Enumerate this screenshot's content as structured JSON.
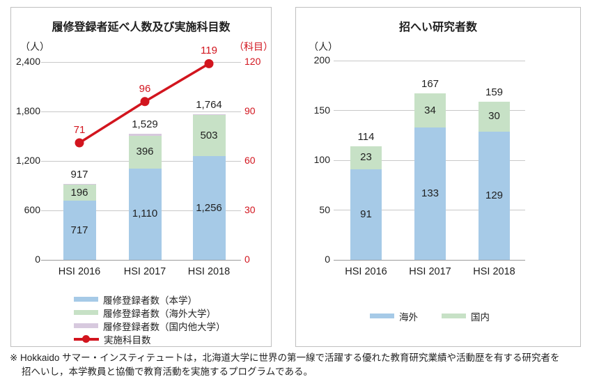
{
  "colors": {
    "blue": "#a6cae7",
    "green": "#c7e1c6",
    "purple": "#d7c9de",
    "red": "#d2151e",
    "grid": "#c8c8c8",
    "axis": "#9c9c9c",
    "border": "#bfbfbf",
    "text": "#1f1f1f"
  },
  "chart_data": [
    {
      "type": "bar",
      "title": "履修登録者延べ人数及び実施科目数",
      "categories": [
        "HSI 2016",
        "HSI 2017",
        "HSI 2018"
      ],
      "series": [
        {
          "name": "履修登録者数（本学）",
          "color": "#a6cae7",
          "values": [
            717,
            1110,
            1256
          ],
          "labels": [
            "717",
            "1,110",
            "1,256"
          ]
        },
        {
          "name": "履修登録者数（海外大学）",
          "color": "#c7e1c6",
          "values": [
            196,
            396,
            503
          ],
          "labels": [
            "196",
            "396",
            "503"
          ]
        },
        {
          "name": "履修登録者数（国内他大学）",
          "color": "#d7c9de",
          "values": [
            4,
            23,
            5
          ],
          "labels": [
            "",
            "",
            ""
          ]
        }
      ],
      "totals": [
        917,
        1529,
        1764
      ],
      "totals_display": [
        "917",
        "1,529",
        "1,764"
      ],
      "line_series": {
        "name": "実施科目数",
        "color": "#d2151e",
        "values": [
          71,
          96,
          119
        ],
        "labels": [
          "71",
          "96",
          "119"
        ]
      },
      "y_left": {
        "unit": "（人）",
        "max": 2400,
        "ticks": [
          "2,400",
          "1,800",
          "1,200",
          "600",
          "0"
        ]
      },
      "y_right": {
        "unit": "（科目）",
        "max": 120,
        "ticks": [
          "120",
          "90",
          "60",
          "30",
          "0"
        ]
      },
      "grid": "on",
      "legend_position": "bottom"
    },
    {
      "type": "bar",
      "title": "招へい研究者数",
      "categories": [
        "HSI 2016",
        "HSI 2017",
        "HSI 2018"
      ],
      "series": [
        {
          "name": "海外",
          "color": "#a6cae7",
          "values": [
            91,
            133,
            129
          ],
          "labels": [
            "91",
            "133",
            "129"
          ]
        },
        {
          "name": "国内",
          "color": "#c7e1c6",
          "values": [
            23,
            34,
            30
          ],
          "labels": [
            "23",
            "34",
            "30"
          ]
        }
      ],
      "totals": [
        114,
        167,
        159
      ],
      "totals_display": [
        "114",
        "167",
        "159"
      ],
      "y_left": {
        "unit": "（人）",
        "max": 200,
        "ticks": [
          "200",
          "150",
          "100",
          "50",
          "0"
        ]
      },
      "grid": "on",
      "legend_position": "bottom"
    }
  ],
  "note": {
    "line1": "※ Hokkaido サマー・インスティテュートは，北海道大学に世界の第一線で活躍する優れた教育研究業績や活動歴を有する研究者を",
    "line2": "招へいし，本学教員と協働で教育活動を実施するプログラムである。"
  }
}
